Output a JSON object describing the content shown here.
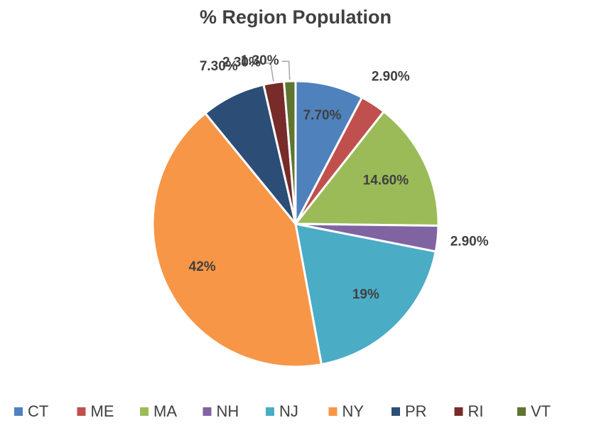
{
  "chart_data": {
    "type": "pie",
    "title": "% Region Population",
    "categories": [
      "CT",
      "ME",
      "MA",
      "NH",
      "NJ",
      "NY",
      "PR",
      "RI",
      "VT"
    ],
    "values": [
      7.7,
      2.9,
      14.6,
      2.9,
      19,
      42,
      7.3,
      2.3,
      1.3
    ],
    "value_labels": [
      "7.70%",
      "2.90%",
      "14.60%",
      "2.90%",
      "19%",
      "42%",
      "7.30%",
      "2.30%",
      "1.30%"
    ],
    "colors": [
      "#4f81bd",
      "#c0504d",
      "#9bbb59",
      "#8064a2",
      "#4bacc6",
      "#f79646",
      "#2c4d75",
      "#772c2a",
      "#5f7530"
    ],
    "legend": "bottom"
  }
}
